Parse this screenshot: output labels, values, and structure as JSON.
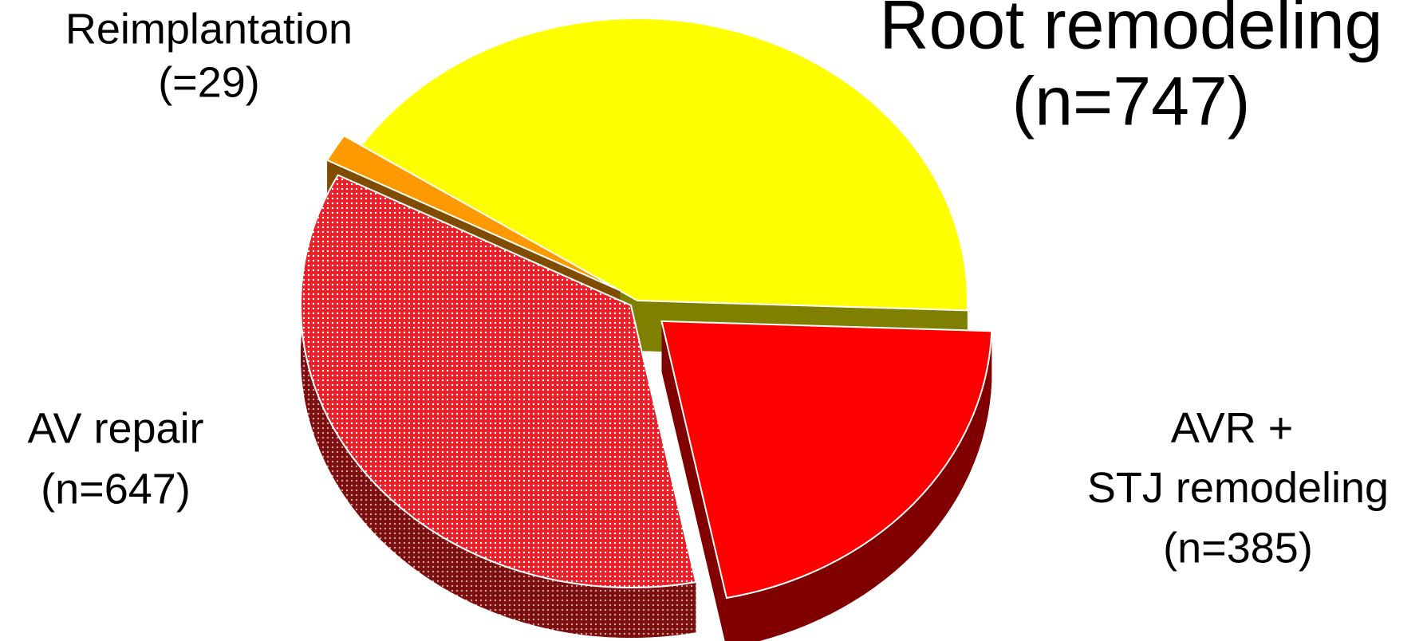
{
  "chart_data": {
    "type": "pie",
    "categories": [
      "Reimplantation",
      "Root remodeling",
      "AV repair",
      "AVR + STJ remodeling"
    ],
    "values": [
      29,
      747,
      647,
      385
    ],
    "value_labels": [
      "(=29)",
      "(n=747)",
      "(n=647)",
      "(n=385)"
    ],
    "colors": [
      "#ff9900",
      "#ffff00",
      "#e8202a",
      "#ff0000"
    ]
  }
}
